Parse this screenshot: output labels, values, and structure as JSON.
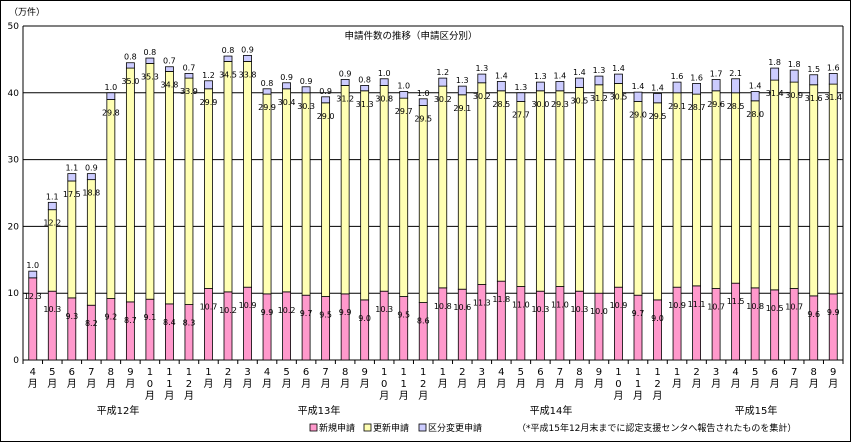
{
  "chart_data": {
    "type": "bar",
    "stacked": true,
    "title": "申請件数の推移（申請区分別）",
    "ylabel": "（万件）",
    "ylim": [
      0,
      50
    ],
    "yticks": [
      0,
      10,
      20,
      30,
      40,
      50
    ],
    "grid": true,
    "categories": [
      "4月",
      "5月",
      "6月",
      "7月",
      "8月",
      "9月",
      "10月",
      "11月",
      "12月",
      "1月",
      "2月",
      "3月",
      "4月",
      "5月",
      "6月",
      "7月",
      "8月",
      "9月",
      "10月",
      "11月",
      "12月",
      "1月",
      "2月",
      "3月",
      "4月",
      "5月",
      "6月",
      "7月",
      "8月",
      "9月",
      "10月",
      "11月",
      "12月",
      "1月",
      "2月",
      "3月",
      "4月",
      "5月",
      "6月",
      "7月",
      "8月",
      "9月"
    ],
    "category_labels": [
      [
        "4",
        "月"
      ],
      [
        "5",
        "月"
      ],
      [
        "6",
        "月"
      ],
      [
        "7",
        "月"
      ],
      [
        "8",
        "月"
      ],
      [
        "9",
        "月"
      ],
      [
        "1",
        "0",
        "月"
      ],
      [
        "1",
        "1",
        "月"
      ],
      [
        "1",
        "2",
        "月"
      ],
      [
        "1",
        "月"
      ],
      [
        "2",
        "月"
      ],
      [
        "3",
        "月"
      ],
      [
        "4",
        "月"
      ],
      [
        "5",
        "月"
      ],
      [
        "6",
        "月"
      ],
      [
        "7",
        "月"
      ],
      [
        "8",
        "月"
      ],
      [
        "9",
        "月"
      ],
      [
        "1",
        "0",
        "月"
      ],
      [
        "1",
        "1",
        "月"
      ],
      [
        "1",
        "2",
        "月"
      ],
      [
        "1",
        "月"
      ],
      [
        "2",
        "月"
      ],
      [
        "3",
        "月"
      ],
      [
        "4",
        "月"
      ],
      [
        "5",
        "月"
      ],
      [
        "6",
        "月"
      ],
      [
        "7",
        "月"
      ],
      [
        "8",
        "月"
      ],
      [
        "9",
        "月"
      ],
      [
        "1",
        "0",
        "月"
      ],
      [
        "1",
        "1",
        "月"
      ],
      [
        "1",
        "2",
        "月"
      ],
      [
        "1",
        "月"
      ],
      [
        "2",
        "月"
      ],
      [
        "3",
        "月"
      ],
      [
        "4",
        "月"
      ],
      [
        "5",
        "月"
      ],
      [
        "6",
        "月"
      ],
      [
        "7",
        "月"
      ],
      [
        "8",
        "月"
      ],
      [
        "9",
        "月"
      ]
    ],
    "year_groups": [
      {
        "label": "平成12年",
        "start": 0,
        "end": 11
      },
      {
        "label": "平成13年",
        "start": 12,
        "end": 23
      },
      {
        "label": "平成14年",
        "start": 24,
        "end": 35
      },
      {
        "label": "平成15年",
        "start": 36,
        "end": 41
      }
    ],
    "series": [
      {
        "name": "新規申請",
        "color": "#ff99cc",
        "values": [
          12.3,
          10.3,
          9.3,
          8.2,
          9.2,
          8.7,
          9.1,
          8.4,
          8.3,
          10.7,
          10.2,
          10.9,
          9.9,
          10.2,
          9.7,
          9.5,
          9.9,
          9.0,
          10.3,
          9.5,
          8.6,
          10.8,
          10.6,
          11.3,
          11.8,
          11.0,
          10.3,
          11.0,
          10.3,
          10.0,
          10.9,
          9.7,
          9.0,
          10.9,
          11.1,
          10.7,
          11.5,
          10.8,
          10.5,
          10.7,
          9.6,
          9.9
        ],
        "labels": [
          "12.3",
          "10.3",
          "9.3",
          "8.2",
          "9.2",
          "8.7",
          "9.1",
          "8.4",
          "8.3",
          "10.7",
          "10.2",
          "10.9",
          "9.9",
          "10.2",
          "9.7",
          "9.5",
          "9.9",
          "9.0",
          "10.3",
          "9.5",
          "8.6",
          "10.8",
          "10.6",
          "11.3",
          "11.8",
          "11.0",
          "10.3",
          "11.0",
          "10.3",
          "10.0",
          "10.9",
          "9.7",
          "9.0",
          "10.9",
          "11.1",
          "10.7",
          "11.5",
          "10.8",
          "10.5",
          "10.7",
          "9.6",
          "9.9"
        ]
      },
      {
        "name": "更新申請",
        "color": "#ffffb3",
        "values": [
          0,
          12.2,
          17.5,
          18.8,
          29.8,
          35.0,
          35.3,
          34.8,
          33.9,
          29.9,
          34.5,
          33.8,
          29.9,
          30.4,
          30.3,
          29.0,
          31.2,
          31.3,
          30.8,
          29.7,
          29.5,
          30.2,
          29.1,
          30.2,
          28.5,
          27.7,
          30.0,
          29.3,
          30.5,
          31.2,
          30.5,
          29.0,
          29.5,
          29.1,
          28.7,
          29.6,
          28.5,
          28.0,
          31.4,
          30.9,
          31.6,
          31.4
        ],
        "labels": [
          "",
          "12.2",
          "17.5",
          "18.8",
          "29.8",
          "35.0",
          "35.3",
          "34.8",
          "33.9",
          "29.9",
          "34.5",
          "33.8",
          "29.9",
          "30.4",
          "30.3",
          "29.0",
          "31.2",
          "31.3",
          "30.8",
          "29.7",
          "29.5",
          "30.2",
          "29.1",
          "30.2",
          "28.5",
          "27.7",
          "30.0",
          "29.3",
          "30.5",
          "31.2",
          "30.5",
          "29.0",
          "29.5",
          "29.1",
          "28.7",
          "29.6",
          "28.5",
          "28.0",
          "31.4",
          "30.9",
          "31.6",
          "31.4"
        ]
      },
      {
        "name": "区分変更申請",
        "color": "#ccccff",
        "values": [
          1.0,
          1.1,
          1.1,
          0.9,
          1.0,
          0.8,
          0.8,
          0.7,
          0.7,
          1.2,
          0.8,
          0.9,
          0.8,
          0.9,
          0.9,
          0.9,
          0.9,
          0.8,
          1.0,
          1.0,
          1.0,
          1.2,
          1.3,
          1.3,
          1.4,
          1.3,
          1.3,
          1.4,
          1.4,
          1.3,
          1.4,
          1.4,
          1.4,
          1.6,
          1.6,
          1.7,
          2.1,
          1.4,
          1.8,
          1.8,
          1.5,
          1.6
        ],
        "labels": [
          "1.0",
          "1.1",
          "1.1",
          "0.9",
          "1.0",
          "0.8",
          "0.8",
          "0.7",
          "0.7",
          "1.2",
          "0.8",
          "0.9",
          "0.8",
          "0.9",
          "0.9",
          "0.9",
          "0.9",
          "0.8",
          "1.0",
          "1.0",
          "1.0",
          "1.2",
          "1.3",
          "1.3",
          "1.4",
          "1.3",
          "1.3",
          "1.4",
          "1.4",
          "1.3",
          "1.4",
          "1.4",
          "1.4",
          "1.6",
          "1.6",
          "1.7",
          "2.1",
          "1.4",
          "1.8",
          "1.8",
          "1.5",
          "1.6"
        ]
      }
    ],
    "legend_position": "bottom",
    "annotation": "（*平成15年12月末までに認定支援センタへ報告されたものを集計）"
  }
}
